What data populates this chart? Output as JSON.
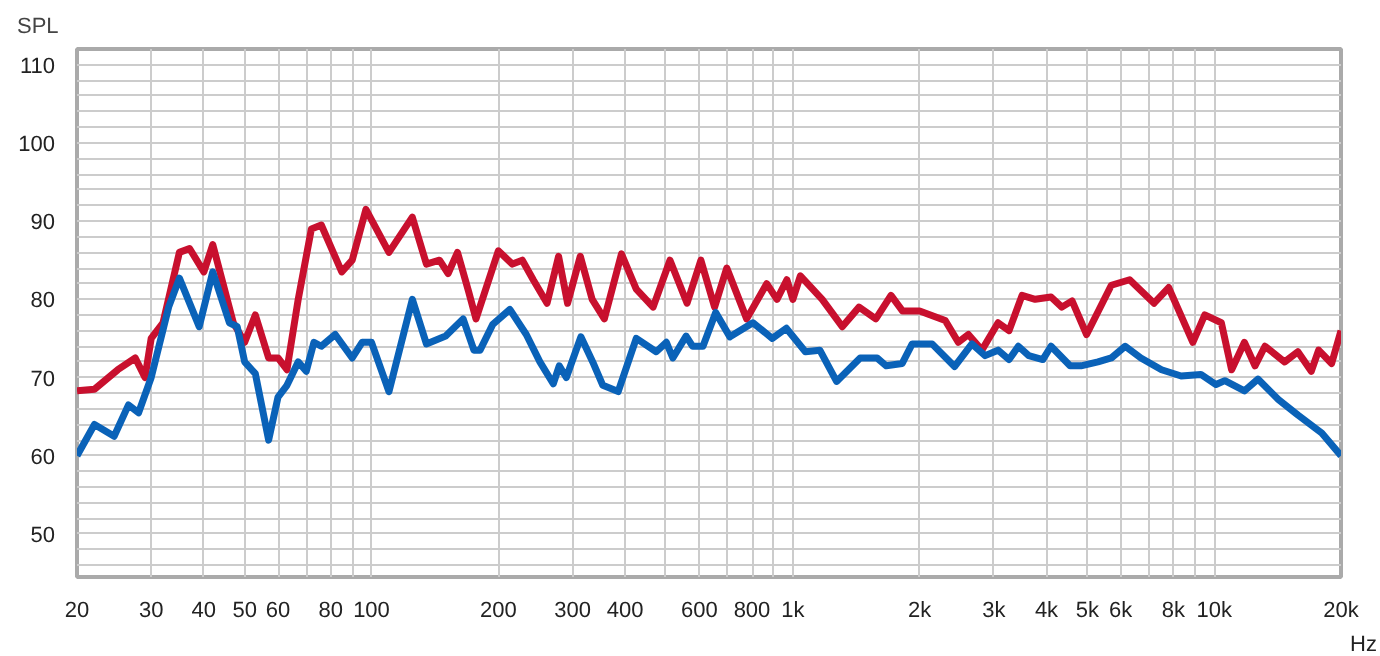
{
  "chart_data": {
    "type": "line",
    "ylabel": "SPL",
    "log": "x",
    "grid": true,
    "line_style": "solid",
    "marker": "none",
    "xlim": [
      20,
      20000
    ],
    "ylim": [
      44.5,
      112
    ],
    "xticks": [
      20,
      30,
      40,
      50,
      60,
      {
        "value": 70,
        "label": null
      },
      80,
      {
        "value": 90,
        "label": null
      },
      100,
      200,
      300,
      400,
      {
        "value": 500,
        "label": null
      },
      600,
      {
        "value": 700,
        "label": null
      },
      800,
      {
        "value": 900,
        "label": null
      },
      {
        "value": 1000,
        "label": "1k"
      },
      {
        "value": 2000,
        "label": "2k"
      },
      {
        "value": 3000,
        "label": "3k"
      },
      {
        "value": 4000,
        "label": "4k"
      },
      {
        "value": 5000,
        "label": "5k"
      },
      {
        "value": 6000,
        "label": "6k"
      },
      {
        "value": 7000,
        "label": null
      },
      {
        "value": 8000,
        "label": "8k"
      },
      {
        "value": 9000,
        "label": null
      },
      {
        "value": 10000,
        "label": "10k"
      },
      {
        "value": 20000,
        "label": "20k"
      }
    ],
    "xlabel": "Hz",
    "yticks": [
      {
        "value": 46,
        "label": null
      },
      {
        "value": 48,
        "label": null
      },
      50,
      {
        "value": 52,
        "label": null
      },
      {
        "value": 54,
        "label": null
      },
      {
        "value": 56,
        "label": null
      },
      {
        "value": 58,
        "label": null
      },
      60,
      {
        "value": 62,
        "label": null
      },
      {
        "value": 64,
        "label": null
      },
      {
        "value": 66,
        "label": null
      },
      {
        "value": 68,
        "label": null
      },
      70,
      {
        "value": 72,
        "label": null
      },
      {
        "value": 74,
        "label": null
      },
      {
        "value": 76,
        "label": null
      },
      {
        "value": 78,
        "label": null
      },
      80,
      {
        "value": 82,
        "label": null
      },
      {
        "value": 84,
        "label": null
      },
      {
        "value": 86,
        "label": null
      },
      {
        "value": 88,
        "label": null
      },
      90,
      {
        "value": 92,
        "label": null
      },
      {
        "value": 94,
        "label": null
      },
      {
        "value": 96,
        "label": null
      },
      {
        "value": 98,
        "label": null
      },
      100,
      {
        "value": 102,
        "label": null
      },
      {
        "value": 104,
        "label": null
      },
      {
        "value": 106,
        "label": null
      },
      {
        "value": 108,
        "label": null
      },
      110
    ],
    "series": [
      {
        "color": "#c8102e",
        "x": [
          20,
          22,
          25,
          27.5,
          29,
          30,
          32,
          35,
          37,
          40,
          42,
          47,
          50,
          53,
          57,
          60,
          63,
          67,
          72,
          76,
          85,
          90,
          97,
          110,
          125,
          135,
          145,
          152,
          160,
          170,
          177,
          200,
          216,
          228,
          242,
          261,
          278,
          292,
          313,
          334,
          357,
          392,
          425,
          466,
          511,
          561,
          605,
          652,
          697,
          777,
          867,
          917,
          968,
          1000,
          1042,
          1174,
          1310,
          1436,
          1574,
          1710,
          1822,
          2000,
          2300,
          2470,
          2610,
          2810,
          3070,
          3260,
          3500,
          3760,
          4100,
          4350,
          4600,
          4980,
          5700,
          6300,
          7200,
          7800,
          8900,
          9500,
          10400,
          11000,
          11800,
          12500,
          13200,
          14700,
          15800,
          17000,
          17700,
          19000,
          20000
        ],
        "values": [
          68.3,
          68.5,
          71,
          72.5,
          70,
          75,
          77,
          86,
          86.5,
          83.5,
          87,
          77,
          74.5,
          78,
          72.5,
          72.5,
          71,
          80,
          89,
          89.5,
          83.5,
          85,
          91.5,
          86,
          90.5,
          84.5,
          85,
          83.3,
          86,
          81,
          77.5,
          86.2,
          84.5,
          85,
          82.5,
          79.5,
          85.5,
          79.5,
          85.5,
          80,
          77.5,
          85.8,
          81.3,
          79,
          85,
          79.5,
          85,
          79,
          84,
          77.5,
          82,
          80,
          82.5,
          80,
          83,
          80,
          76.5,
          79,
          77.5,
          80.5,
          78.5,
          78.5,
          77.3,
          74.5,
          75.5,
          73.5,
          77,
          76,
          80.5,
          80,
          80.3,
          79,
          79.8,
          75.5,
          81.8,
          82.5,
          79.5,
          81.5,
          74.5,
          78,
          77,
          71,
          74.5,
          71.5,
          74,
          72,
          73.3,
          70.8,
          73.5,
          71.8,
          76
        ]
      },
      {
        "color": "#0a62b8",
        "x": [
          20,
          22,
          24.5,
          26.5,
          28,
          30,
          33,
          35,
          39,
          42,
          46,
          48,
          50,
          53,
          57,
          60,
          63,
          67,
          70,
          73,
          76,
          82,
          90,
          95,
          100,
          110,
          125,
          135,
          150,
          165,
          175,
          181,
          194,
          213,
          233,
          251,
          270,
          279,
          290,
          314,
          335,
          354,
          385,
          425,
          474,
          501,
          519,
          558,
          578,
          612,
          656,
          709,
          804,
          894,
          965,
          1071,
          1159,
          1270,
          1445,
          1585,
          1666,
          1818,
          1920,
          2140,
          2420,
          2660,
          2860,
          3070,
          3260,
          3430,
          3630,
          3920,
          4100,
          4550,
          4830,
          5300,
          5700,
          6150,
          6700,
          7500,
          8350,
          9300,
          10100,
          10600,
          11800,
          12700,
          14200,
          15800,
          18000,
          20000
        ],
        "values": [
          60,
          64,
          62.5,
          66.5,
          65.5,
          70,
          79,
          82.7,
          76.5,
          83.5,
          77,
          76.5,
          72,
          70.5,
          62,
          67.5,
          69,
          72,
          70.8,
          74.5,
          74,
          75.5,
          72.5,
          74.5,
          74.5,
          68.2,
          80,
          74.3,
          75.3,
          77.5,
          73.5,
          73.5,
          76.8,
          78.7,
          75.5,
          72,
          69.2,
          71.5,
          70,
          75.2,
          72,
          69,
          68.2,
          75,
          73.3,
          74.5,
          72.5,
          75.3,
          74,
          74,
          78.3,
          75.2,
          77,
          75,
          76.3,
          73.3,
          73.5,
          69.5,
          72.5,
          72.5,
          71.5,
          71.8,
          74.3,
          74.3,
          71.4,
          74.3,
          72.8,
          73.5,
          72.3,
          74,
          72.8,
          72.3,
          74,
          71.5,
          71.5,
          72,
          72.5,
          74,
          72.5,
          71,
          70.2,
          70.4,
          69.1,
          69.6,
          68.3,
          69.8,
          67.2,
          65.2,
          62.9,
          60
        ]
      }
    ]
  }
}
